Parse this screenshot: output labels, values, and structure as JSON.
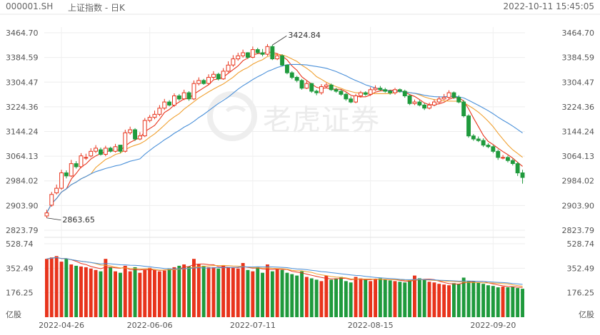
{
  "header": {
    "symbol": "000001.SH",
    "name": "上证指数 - 日K",
    "datetime": "2022-10-11 15:45:05"
  },
  "watermark": {
    "text": "老虎证券"
  },
  "chart_data": [
    {
      "type": "candlestick",
      "panel": "price",
      "ylim": [
        2823.79,
        3464.7
      ],
      "yticks": [
        "3464.70",
        "3384.59",
        "3304.47",
        "3224.36",
        "3144.24",
        "3064.13",
        "2984.02",
        "2903.90",
        "2823.79"
      ],
      "annotations": [
        {
          "text": "3424.84",
          "value": 3424.84,
          "at_index": 46
        },
        {
          "text": "2863.65",
          "value": 2863.65,
          "at_index": 0
        }
      ],
      "colors": {
        "up": "#e8341c",
        "down": "#1f9a3c",
        "ma5": "#e8341c",
        "ma10": "#f0a030",
        "ma20": "#4a90d9"
      },
      "x_labels": [
        {
          "index": 3,
          "text": "2022-04-26"
        },
        {
          "index": 21,
          "text": "2022-06-06"
        },
        {
          "index": 42,
          "text": "2022-07-11"
        },
        {
          "index": 66,
          "text": "2022-08-15"
        },
        {
          "index": 91,
          "text": "2022-09-20"
        }
      ],
      "series": {
        "open": [
          2870,
          2905,
          2945,
          2960,
          3010,
          3000,
          3040,
          3030,
          3060,
          3065,
          3080,
          3085,
          3070,
          3090,
          3080,
          3100,
          3080,
          3140,
          3150,
          3120,
          3130,
          3180,
          3190,
          3200,
          3220,
          3240,
          3230,
          3260,
          3250,
          3270,
          3250,
          3300,
          3310,
          3300,
          3320,
          3330,
          3315,
          3340,
          3360,
          3380,
          3390,
          3400,
          3385,
          3410,
          3400,
          3395,
          3420,
          3380,
          3390,
          3360,
          3335,
          3320,
          3310,
          3285,
          3300,
          3275,
          3270,
          3290,
          3295,
          3280,
          3275,
          3265,
          3250,
          3240,
          3260,
          3270,
          3265,
          3280,
          3285,
          3280,
          3275,
          3270,
          3280,
          3275,
          3260,
          3235,
          3240,
          3230,
          3220,
          3230,
          3240,
          3250,
          3255,
          3270,
          3255,
          3240,
          3195,
          3130,
          3120,
          3115,
          3100,
          3095,
          3080,
          3060,
          3060,
          3050,
          3040,
          3010
        ],
        "close": [
          2880,
          2940,
          2960,
          3010,
          3000,
          3040,
          3030,
          3065,
          3060,
          3080,
          3090,
          3070,
          3090,
          3080,
          3095,
          3080,
          3140,
          3150,
          3120,
          3130,
          3180,
          3190,
          3200,
          3220,
          3240,
          3230,
          3260,
          3250,
          3270,
          3250,
          3300,
          3310,
          3300,
          3320,
          3330,
          3315,
          3340,
          3360,
          3380,
          3390,
          3400,
          3385,
          3410,
          3400,
          3395,
          3420,
          3380,
          3390,
          3360,
          3335,
          3320,
          3310,
          3285,
          3300,
          3275,
          3270,
          3290,
          3295,
          3280,
          3275,
          3265,
          3250,
          3240,
          3260,
          3270,
          3265,
          3280,
          3285,
          3280,
          3275,
          3270,
          3280,
          3275,
          3260,
          3235,
          3240,
          3230,
          3220,
          3230,
          3240,
          3250,
          3255,
          3270,
          3255,
          3240,
          3195,
          3130,
          3120,
          3115,
          3100,
          3095,
          3080,
          3060,
          3060,
          3050,
          3040,
          3010,
          2995
        ],
        "high": [
          2890,
          2948,
          2972,
          3020,
          3018,
          3052,
          3048,
          3074,
          3072,
          3090,
          3100,
          3092,
          3098,
          3095,
          3104,
          3098,
          3150,
          3160,
          3155,
          3142,
          3188,
          3198,
          3212,
          3230,
          3250,
          3246,
          3268,
          3266,
          3280,
          3275,
          3310,
          3320,
          3315,
          3330,
          3340,
          3335,
          3350,
          3372,
          3392,
          3400,
          3410,
          3402,
          3420,
          3416,
          3412,
          3428,
          3425,
          3398,
          3395,
          3362,
          3340,
          3325,
          3315,
          3308,
          3302,
          3280,
          3298,
          3302,
          3300,
          3286,
          3280,
          3270,
          3258,
          3266,
          3276,
          3275,
          3288,
          3294,
          3292,
          3286,
          3280,
          3286,
          3284,
          3280,
          3265,
          3248,
          3246,
          3236,
          3238,
          3248,
          3258,
          3266,
          3278,
          3274,
          3262,
          3246,
          3200,
          3136,
          3128,
          3122,
          3106,
          3100,
          3086,
          3068,
          3066,
          3056,
          3046,
          3020
        ],
        "low": [
          2863.65,
          2900,
          2940,
          2955,
          2992,
          2996,
          3024,
          3025,
          3052,
          3060,
          3074,
          3066,
          3064,
          3076,
          3076,
          3074,
          3076,
          3134,
          3114,
          3116,
          3126,
          3174,
          3184,
          3194,
          3214,
          3226,
          3224,
          3244,
          3246,
          3244,
          3246,
          3294,
          3296,
          3296,
          3314,
          3310,
          3312,
          3336,
          3354,
          3374,
          3384,
          3380,
          3382,
          3396,
          3388,
          3390,
          3376,
          3376,
          3356,
          3330,
          3314,
          3304,
          3280,
          3282,
          3270,
          3262,
          3264,
          3284,
          3276,
          3270,
          3260,
          3244,
          3236,
          3236,
          3254,
          3260,
          3260,
          3276,
          3276,
          3270,
          3264,
          3264,
          3270,
          3254,
          3230,
          3230,
          3226,
          3214,
          3216,
          3226,
          3236,
          3246,
          3250,
          3250,
          3236,
          3190,
          3124,
          3114,
          3110,
          3094,
          3090,
          3074,
          3052,
          3054,
          3044,
          3034,
          3000,
          2975
        ],
        "volume": [
          420,
          430,
          440,
          400,
          420,
          380,
          370,
          365,
          360,
          350,
          340,
          330,
          420,
          360,
          330,
          320,
          370,
          330,
          360,
          320,
          340,
          355,
          340,
          330,
          335,
          350,
          360,
          370,
          380,
          365,
          420,
          380,
          370,
          360,
          360,
          350,
          370,
          360,
          355,
          350,
          390,
          340,
          330,
          360,
          320,
          380,
          330,
          350,
          340,
          320,
          310,
          300,
          330,
          290,
          280,
          270,
          260,
          300,
          270,
          280,
          290,
          260,
          250,
          290,
          280,
          270,
          260,
          275,
          280,
          270,
          265,
          260,
          255,
          250,
          265,
          300,
          280,
          270,
          255,
          250,
          240,
          235,
          230,
          245,
          240,
          285,
          260,
          255,
          250,
          240,
          230,
          225,
          215,
          220,
          215,
          220,
          210,
          205
        ]
      }
    },
    {
      "type": "bar",
      "panel": "volume",
      "ylim": [
        0,
        528.74
      ],
      "yticks": [
        "528.74",
        "352.49",
        "176.25"
      ],
      "unit_label": "亿股"
    }
  ]
}
